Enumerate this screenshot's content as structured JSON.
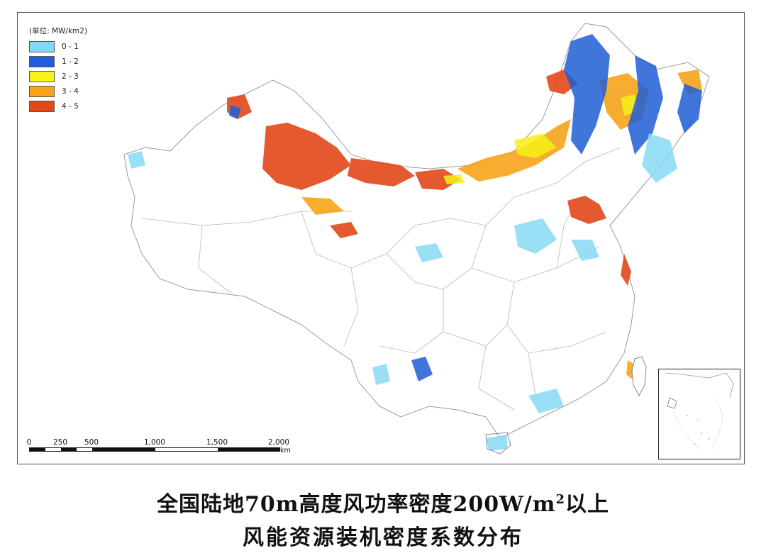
{
  "legend": {
    "title": "(单位: MW/km2)",
    "items": [
      {
        "label": "0 - 1",
        "color": "#7fd8f5"
      },
      {
        "label": "1 - 2",
        "color": "#1f5ed6"
      },
      {
        "label": "2 - 3",
        "color": "#f7f218"
      },
      {
        "label": "3 - 4",
        "color": "#f5a41a"
      },
      {
        "label": "4 - 5",
        "color": "#e2481a"
      }
    ]
  },
  "scalebar": {
    "ticks": [
      "0",
      "250",
      "500",
      "1,000",
      "1,500",
      "2,000"
    ],
    "unit": "km"
  },
  "caption": {
    "line1_prefix": "全国陆地70m高度风功率密度200W/m",
    "line1_sup": "2",
    "line1_suffix": "以上",
    "line2": "风能资源装机密度系数分布"
  }
}
